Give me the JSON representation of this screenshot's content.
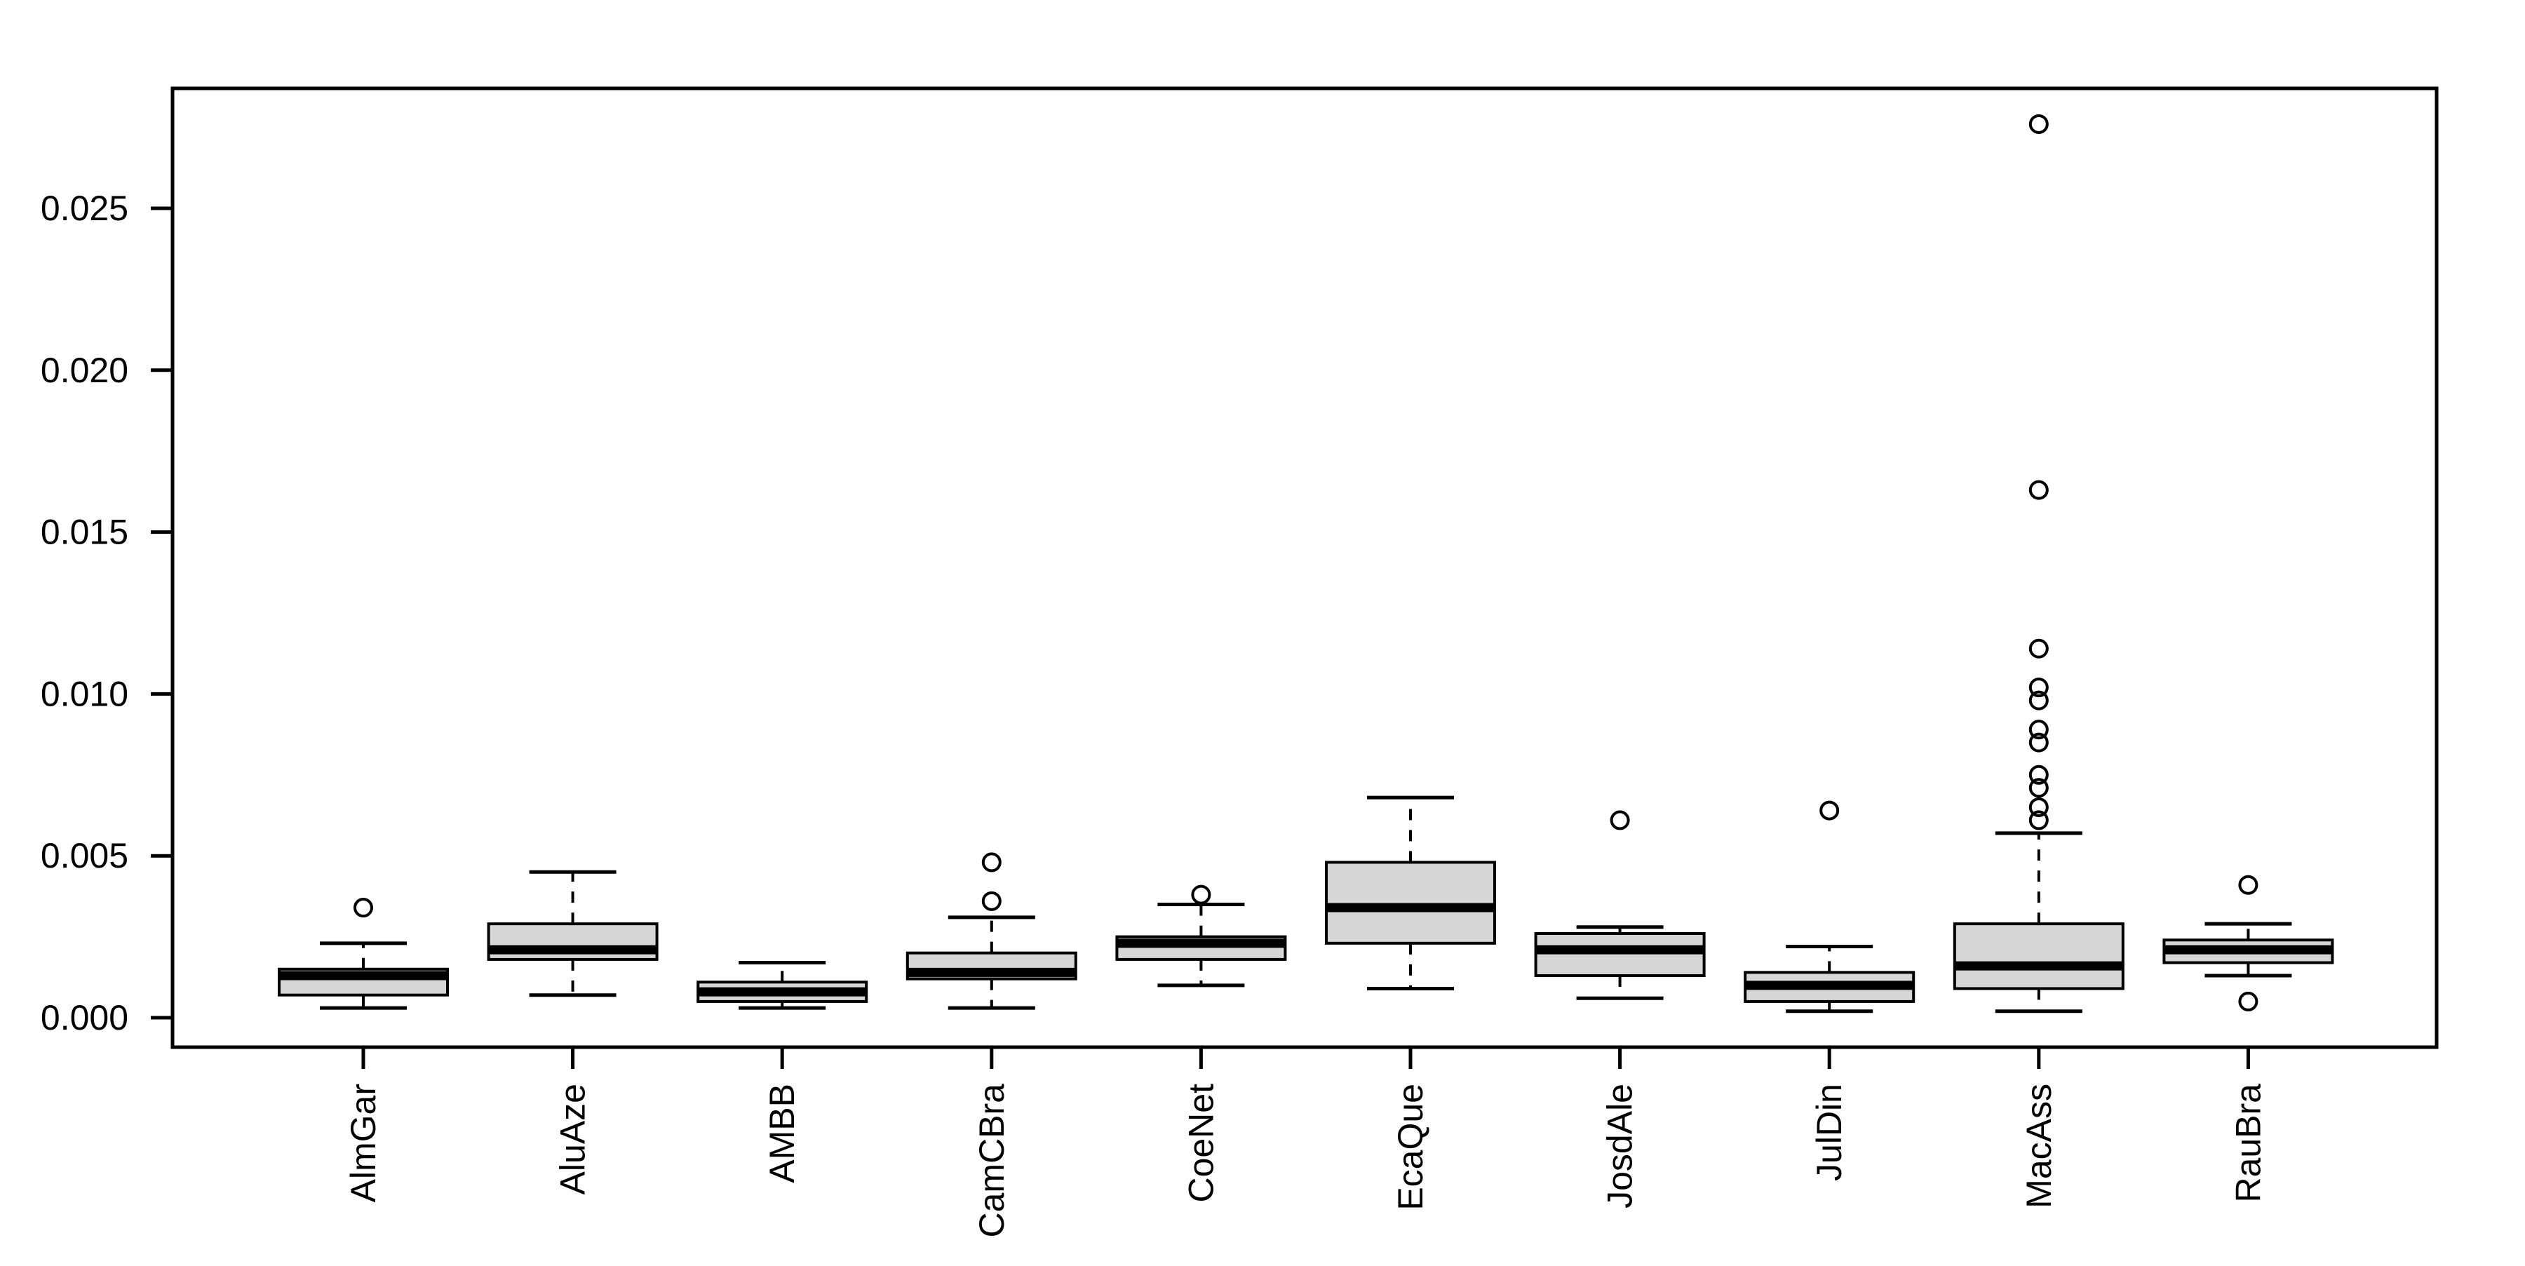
{
  "chart_data": {
    "type": "boxplot",
    "title": "",
    "xlabel": "",
    "ylabel": "",
    "grid": false,
    "legend": "none",
    "ylim": [
      -0.0009,
      0.0287
    ],
    "ytick_values": [
      0.0,
      0.005,
      0.01,
      0.015,
      0.02,
      0.025
    ],
    "ytick_labels": [
      "0.000",
      "0.005",
      "0.010",
      "0.015",
      "0.020",
      "0.025"
    ],
    "categories": [
      "AlmGar",
      "AluAze",
      "AMBB",
      "CamCBra",
      "CoeNet",
      "EcaQue",
      "JosdAle",
      "JulDin",
      "MacAss",
      "RauBra"
    ],
    "series": [
      {
        "name": "AlmGar",
        "low": 0.0003,
        "q1": 0.0007,
        "median": 0.0013,
        "q3": 0.0015,
        "high": 0.0023,
        "outliers": [
          0.0034
        ]
      },
      {
        "name": "AluAze",
        "low": 0.0007,
        "q1": 0.0018,
        "median": 0.0021,
        "q3": 0.0029,
        "high": 0.0045,
        "outliers": []
      },
      {
        "name": "AMBB",
        "low": 0.0003,
        "q1": 0.0005,
        "median": 0.0008,
        "q3": 0.0011,
        "high": 0.0017,
        "outliers": []
      },
      {
        "name": "CamCBra",
        "low": 0.0003,
        "q1": 0.0012,
        "median": 0.0014,
        "q3": 0.002,
        "high": 0.0031,
        "outliers": [
          0.0036,
          0.0048
        ]
      },
      {
        "name": "CoeNet",
        "low": 0.001,
        "q1": 0.0018,
        "median": 0.0023,
        "q3": 0.0025,
        "high": 0.0035,
        "outliers": [
          0.0038
        ]
      },
      {
        "name": "EcaQue",
        "low": 0.0009,
        "q1": 0.0023,
        "median": 0.0034,
        "q3": 0.0048,
        "high": 0.0068,
        "outliers": []
      },
      {
        "name": "JosdAle",
        "low": 0.0006,
        "q1": 0.0013,
        "median": 0.0021,
        "q3": 0.0026,
        "high": 0.0028,
        "outliers": [
          0.0061
        ]
      },
      {
        "name": "JulDin",
        "low": 0.0002,
        "q1": 0.0005,
        "median": 0.001,
        "q3": 0.0014,
        "high": 0.0022,
        "outliers": [
          0.0064
        ]
      },
      {
        "name": "MacAss",
        "low": 0.0002,
        "q1": 0.0009,
        "median": 0.0016,
        "q3": 0.0029,
        "high": 0.0057,
        "outliers": [
          0.0061,
          0.0065,
          0.0071,
          0.0075,
          0.0085,
          0.0089,
          0.0098,
          0.0102,
          0.0114,
          0.0163,
          0.0276
        ]
      },
      {
        "name": "RauBra",
        "low": 0.0013,
        "q1": 0.0017,
        "median": 0.0021,
        "q3": 0.0024,
        "high": 0.0029,
        "outliers": [
          0.0005,
          0.0041
        ]
      }
    ],
    "colors": {
      "box_fill": "#d6d6d6",
      "line": "#000000",
      "background": "#ffffff"
    }
  }
}
